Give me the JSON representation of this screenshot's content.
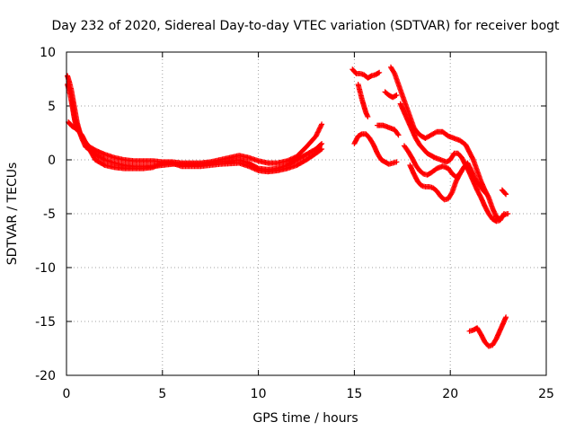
{
  "chart_data": {
    "type": "scatter",
    "title": "Day 232 of 2020, Sidereal Day-to-day VTEC variation (SDTVAR) for receiver bogt",
    "xlabel": "GPS time / hours",
    "ylabel": "SDTVAR / TECUs",
    "xlim": [
      0,
      25
    ],
    "ylim": [
      -20,
      10
    ],
    "xticks": [
      0,
      5,
      10,
      15,
      20,
      25
    ],
    "yticks": [
      -20,
      -15,
      -10,
      -5,
      0,
      5,
      10
    ],
    "grid": true,
    "marker": "+",
    "series": [
      {
        "name": "SDTVAR",
        "color": "#ff0000",
        "tracks": [
          [
            [
              0.05,
              7.8
            ],
            [
              0.15,
              7.2
            ],
            [
              0.25,
              6.5
            ],
            [
              0.35,
              5.5
            ],
            [
              0.45,
              4.5
            ],
            [
              0.55,
              3.5
            ],
            [
              0.7,
              2.5
            ],
            [
              0.9,
              1.8
            ],
            [
              1.2,
              1.2
            ],
            [
              1.6,
              0.8
            ],
            [
              2.0,
              0.5
            ],
            [
              2.5,
              0.2
            ],
            [
              3.0,
              0.0
            ],
            [
              3.5,
              -0.1
            ],
            [
              4.0,
              -0.1
            ],
            [
              4.5,
              -0.1
            ],
            [
              5.0,
              -0.2
            ],
            [
              5.5,
              -0.2
            ],
            [
              6.0,
              -0.3
            ],
            [
              6.5,
              -0.3
            ],
            [
              7.0,
              -0.3
            ],
            [
              7.5,
              -0.2
            ],
            [
              8.0,
              0.0
            ],
            [
              8.5,
              0.2
            ],
            [
              9.0,
              0.4
            ],
            [
              9.5,
              0.2
            ],
            [
              10.0,
              -0.1
            ],
            [
              10.5,
              -0.3
            ],
            [
              11.0,
              -0.3
            ],
            [
              11.5,
              -0.1
            ],
            [
              12.0,
              0.3
            ],
            [
              12.5,
              1.2
            ],
            [
              13.0,
              2.2
            ],
            [
              13.3,
              3.3
            ]
          ],
          [
            [
              0.05,
              7.0
            ],
            [
              0.2,
              6.0
            ],
            [
              0.3,
              5.0
            ],
            [
              0.4,
              4.0
            ],
            [
              0.6,
              3.0
            ],
            [
              0.8,
              2.0
            ],
            [
              1.0,
              1.2
            ],
            [
              1.5,
              0.5
            ],
            [
              2.0,
              0.0
            ],
            [
              2.5,
              -0.3
            ],
            [
              3.0,
              -0.5
            ],
            [
              3.5,
              -0.6
            ],
            [
              4.0,
              -0.6
            ],
            [
              4.5,
              -0.6
            ],
            [
              5.0,
              -0.5
            ],
            [
              5.5,
              -0.4
            ],
            [
              6.0,
              -0.4
            ],
            [
              6.5,
              -0.4
            ],
            [
              7.0,
              -0.4
            ],
            [
              7.5,
              -0.3
            ],
            [
              8.0,
              -0.2
            ],
            [
              8.5,
              -0.1
            ],
            [
              9.0,
              0.0
            ],
            [
              9.5,
              -0.3
            ],
            [
              10.0,
              -0.8
            ],
            [
              10.5,
              -0.9
            ],
            [
              11.0,
              -0.8
            ],
            [
              11.5,
              -0.5
            ],
            [
              12.0,
              0.0
            ],
            [
              12.5,
              0.5
            ],
            [
              13.0,
              1.0
            ],
            [
              13.3,
              1.5
            ]
          ],
          [
            [
              0.1,
              3.5
            ],
            [
              0.2,
              3.3
            ],
            [
              0.3,
              3.1
            ],
            [
              0.4,
              3.0
            ],
            [
              0.5,
              2.9
            ],
            [
              0.6,
              2.7
            ],
            [
              0.8,
              2.3
            ],
            [
              1.0,
              1.6
            ],
            [
              1.5,
              0.0
            ],
            [
              2.0,
              -0.5
            ],
            [
              2.5,
              -0.7
            ],
            [
              3.0,
              -0.8
            ],
            [
              3.5,
              -0.8
            ],
            [
              4.0,
              -0.8
            ],
            [
              4.5,
              -0.7
            ],
            [
              5.0,
              -0.3
            ],
            [
              5.5,
              -0.3
            ],
            [
              6.0,
              -0.6
            ],
            [
              7.0,
              -0.6
            ],
            [
              8.0,
              -0.4
            ],
            [
              9.0,
              -0.3
            ],
            [
              9.5,
              -0.6
            ],
            [
              10.0,
              -1.0
            ],
            [
              10.5,
              -1.1
            ],
            [
              11.0,
              -1.0
            ],
            [
              11.5,
              -0.8
            ],
            [
              12.0,
              -0.5
            ],
            [
              12.5,
              0.0
            ],
            [
              13.0,
              0.6
            ],
            [
              13.3,
              1.0
            ]
          ],
          [
            [
              0.3,
              5.5
            ],
            [
              0.35,
              4.8
            ],
            [
              0.4,
              4.0
            ],
            [
              0.45,
              3.5
            ],
            [
              0.5,
              3.2
            ]
          ],
          [
            [
              14.9,
              8.4
            ],
            [
              15.1,
              8.0
            ],
            [
              15.3,
              8.0
            ],
            [
              15.5,
              7.9
            ],
            [
              15.7,
              7.6
            ],
            [
              15.9,
              7.8
            ],
            [
              16.1,
              7.9
            ],
            [
              16.3,
              8.1
            ]
          ],
          [
            [
              15.2,
              7.0
            ],
            [
              15.3,
              6.3
            ],
            [
              15.4,
              5.6
            ],
            [
              15.5,
              5.0
            ],
            [
              15.6,
              4.4
            ],
            [
              15.7,
              4.0
            ]
          ],
          [
            [
              16.6,
              6.3
            ],
            [
              16.8,
              6.0
            ],
            [
              17.0,
              5.8
            ],
            [
              17.2,
              6.0
            ]
          ],
          [
            [
              16.9,
              8.6
            ],
            [
              17.1,
              8.0
            ],
            [
              17.3,
              7.0
            ],
            [
              17.5,
              6.0
            ],
            [
              17.7,
              5.0
            ],
            [
              17.9,
              4.0
            ],
            [
              18.1,
              3.0
            ],
            [
              18.3,
              2.5
            ],
            [
              18.5,
              2.2
            ],
            [
              18.7,
              2.0
            ],
            [
              19.0,
              2.3
            ],
            [
              19.3,
              2.6
            ],
            [
              19.6,
              2.6
            ],
            [
              19.9,
              2.2
            ],
            [
              20.2,
              2.0
            ],
            [
              20.5,
              1.8
            ],
            [
              20.8,
              1.4
            ],
            [
              21.0,
              0.7
            ],
            [
              21.2,
              0.0
            ],
            [
              21.4,
              -1.0
            ],
            [
              21.6,
              -2.0
            ],
            [
              21.8,
              -2.8
            ],
            [
              22.0,
              -3.5
            ],
            [
              22.2,
              -4.5
            ],
            [
              22.4,
              -5.3
            ],
            [
              22.6,
              -5.5
            ],
            [
              22.8,
              -5.1
            ],
            [
              23.0,
              -5.0
            ]
          ],
          [
            [
              17.4,
              5.2
            ],
            [
              17.6,
              4.4
            ],
            [
              17.8,
              3.6
            ],
            [
              18.0,
              2.8
            ],
            [
              18.2,
              2.0
            ],
            [
              18.4,
              1.4
            ],
            [
              18.6,
              1.0
            ],
            [
              18.8,
              0.6
            ],
            [
              19.0,
              0.4
            ],
            [
              19.2,
              0.2
            ],
            [
              19.5,
              0.0
            ],
            [
              19.8,
              -0.2
            ],
            [
              20.0,
              0.0
            ],
            [
              20.2,
              0.6
            ],
            [
              20.4,
              0.6
            ],
            [
              20.6,
              0.2
            ],
            [
              20.8,
              -0.5
            ],
            [
              21.0,
              -1.2
            ],
            [
              21.2,
              -2.0
            ],
            [
              21.4,
              -2.8
            ],
            [
              21.6,
              -3.5
            ],
            [
              21.8,
              -4.3
            ],
            [
              22.0,
              -5.0
            ],
            [
              22.2,
              -5.5
            ],
            [
              22.4,
              -5.7
            ],
            [
              22.6,
              -5.6
            ],
            [
              22.8,
              -5.0
            ]
          ],
          [
            [
              16.2,
              3.2
            ],
            [
              16.5,
              3.2
            ],
            [
              16.8,
              3.0
            ],
            [
              17.1,
              2.8
            ],
            [
              17.3,
              2.3
            ]
          ],
          [
            [
              15.0,
              1.5
            ],
            [
              15.2,
              2.2
            ],
            [
              15.4,
              2.4
            ],
            [
              15.6,
              2.4
            ],
            [
              15.8,
              2.0
            ],
            [
              16.0,
              1.4
            ],
            [
              16.2,
              0.6
            ],
            [
              16.4,
              0.0
            ],
            [
              16.6,
              -0.2
            ],
            [
              16.8,
              -0.4
            ],
            [
              17.0,
              -0.3
            ],
            [
              17.2,
              -0.2
            ]
          ],
          [
            [
              17.6,
              1.3
            ],
            [
              17.8,
              0.8
            ],
            [
              18.0,
              0.2
            ],
            [
              18.2,
              -0.5
            ],
            [
              18.4,
              -1.0
            ],
            [
              18.6,
              -1.3
            ],
            [
              18.8,
              -1.4
            ],
            [
              19.0,
              -1.2
            ],
            [
              19.3,
              -0.8
            ],
            [
              19.6,
              -0.6
            ],
            [
              19.9,
              -0.8
            ],
            [
              20.1,
              -1.3
            ],
            [
              20.3,
              -1.6
            ],
            [
              20.5,
              -1.3
            ],
            [
              20.7,
              -0.7
            ],
            [
              20.9,
              -0.3
            ],
            [
              21.1,
              -1.0
            ],
            [
              21.3,
              -1.8
            ],
            [
              21.5,
              -2.3
            ],
            [
              21.7,
              -2.8
            ],
            [
              21.9,
              -3.2
            ]
          ],
          [
            [
              17.9,
              -0.5
            ],
            [
              18.1,
              -1.3
            ],
            [
              18.3,
              -2.0
            ],
            [
              18.5,
              -2.4
            ],
            [
              18.7,
              -2.5
            ],
            [
              18.9,
              -2.5
            ],
            [
              19.1,
              -2.6
            ],
            [
              19.3,
              -2.9
            ],
            [
              19.5,
              -3.4
            ],
            [
              19.7,
              -3.7
            ],
            [
              19.9,
              -3.6
            ],
            [
              20.1,
              -3.0
            ],
            [
              20.3,
              -2.0
            ],
            [
              20.5,
              -1.3
            ],
            [
              20.6,
              -1.0
            ]
          ],
          [
            [
              22.7,
              -2.8
            ],
            [
              22.8,
              -3.0
            ],
            [
              22.9,
              -3.2
            ]
          ],
          [
            [
              21.0,
              -15.9
            ],
            [
              21.2,
              -15.8
            ],
            [
              21.4,
              -15.6
            ],
            [
              21.6,
              -16.2
            ],
            [
              21.8,
              -16.9
            ],
            [
              22.0,
              -17.3
            ],
            [
              22.2,
              -17.2
            ],
            [
              22.4,
              -16.6
            ],
            [
              22.6,
              -15.8
            ],
            [
              22.8,
              -15.0
            ],
            [
              22.9,
              -14.6
            ]
          ]
        ]
      }
    ]
  }
}
